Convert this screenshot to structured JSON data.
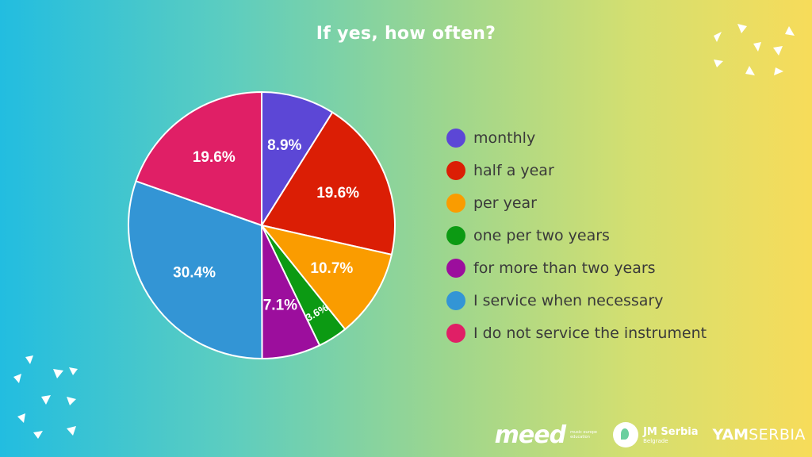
{
  "title": "If yes, how often?",
  "chart_data": {
    "type": "pie",
    "title": "If yes, how often?",
    "start_angle_deg": 90,
    "direction": "clockwise",
    "slices": [
      {
        "label": "monthly",
        "value": 8.9,
        "display": "8.9%",
        "color": "#5c47d6"
      },
      {
        "label": "half a year",
        "value": 19.6,
        "display": "19.6%",
        "color": "#db1e05"
      },
      {
        "label": "per year",
        "value": 10.7,
        "display": "10.7%",
        "color": "#fa9c00"
      },
      {
        "label": "one per two years",
        "value": 3.6,
        "display": "3.6%",
        "color": "#0c9a13"
      },
      {
        "label": "for more than two years",
        "value": 7.1,
        "display": "7.1%",
        "color": "#9c0e9d"
      },
      {
        "label": "I service when necessary",
        "value": 30.4,
        "display": "30.4%",
        "color": "#3395d5"
      },
      {
        "label": "I do not service the instrument",
        "value": 19.6,
        "display": "19.6%",
        "color": "#e01f66"
      }
    ],
    "legend_position": "right"
  },
  "logos": {
    "meed": "meed",
    "meed_sub": "music europe education",
    "jm_main": "JM Serbia",
    "jm_sub": "Belgrade",
    "yam": "YAM",
    "serbia": "SERBIA"
  }
}
